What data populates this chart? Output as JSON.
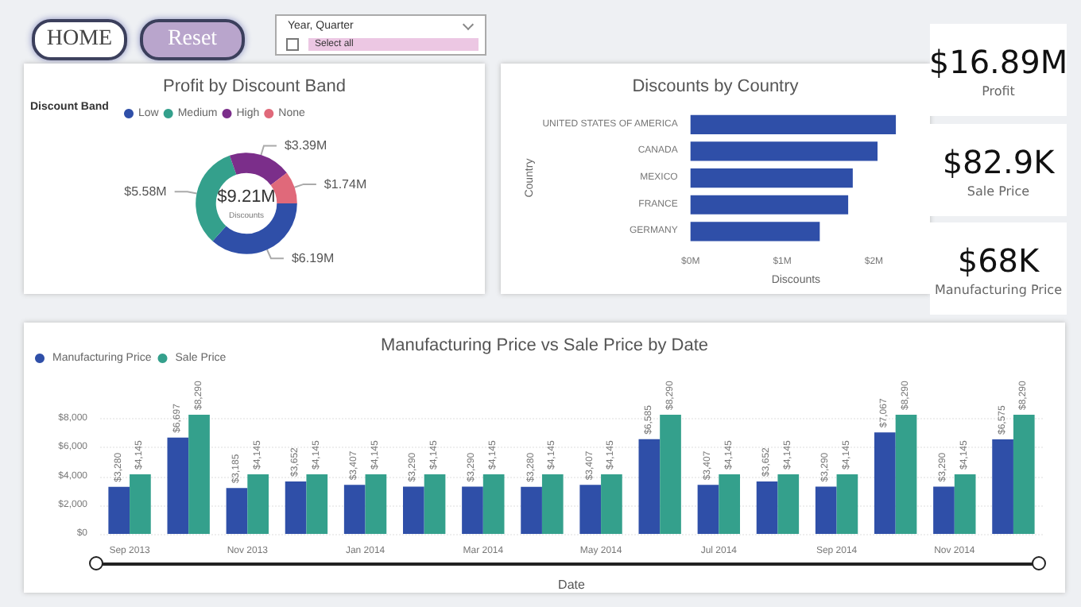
{
  "chart_data": [
    {
      "type": "other",
      "annotations": [
        "HOME",
        "Reset",
        "Year, Quarter",
        "Select all"
      ]
    },
    {
      "type": "donut",
      "title": "Profit by Discount Band",
      "legend_title": "Discount Band",
      "legend": "top left",
      "categories": [
        "Low",
        "Medium",
        "High",
        "None"
      ],
      "values": [
        6.19,
        5.58,
        3.39,
        1.74
      ],
      "colors": [
        "#2f4fa8",
        "#34a08c",
        "#7b2e8a",
        "#e0697a"
      ],
      "value_labels": [
        "$6.19M",
        "$5.58M",
        "$3.39M",
        "$1.74M"
      ],
      "annotations": [
        "$9.21M",
        "Discounts"
      ]
    },
    {
      "type": "bar",
      "orientation": "horizontal",
      "title": "Discounts by Country",
      "xlabel": "Discounts",
      "ylabel": "Country",
      "categories": [
        "UNITED STATES OF AMERICA",
        "CANADA",
        "MEXICO",
        "FRANCE",
        "GERMANY"
      ],
      "values": [
        2.24,
        2.04,
        1.77,
        1.72,
        1.41
      ],
      "color": "#2f4fa8",
      "xlim": [
        0,
        2.3
      ],
      "xticks": [
        {
          "value": 0,
          "label": "$0M"
        },
        {
          "value": 1,
          "label": "$1M"
        },
        {
          "value": 2,
          "label": "$2M"
        }
      ],
      "grid": false
    },
    {
      "type": "other",
      "annotations": [
        "$16.89M",
        "Profit",
        "$82.9K",
        "Sale Price",
        "$68K",
        "Manufacturing Price"
      ]
    },
    {
      "type": "bar",
      "title": "Manufacturing Price vs Sale Price by Date",
      "xlabel": "Date",
      "legend": "top left",
      "grid": "y",
      "categories": [
        "Sep 2013",
        null,
        "Nov 2013",
        null,
        "Jan 2014",
        null,
        "Mar 2014",
        null,
        "May 2014",
        null,
        "Jul 2014",
        null,
        "Sep 2014",
        null,
        "Nov 2014",
        null
      ],
      "ylim": [
        0,
        8290
      ],
      "yticks": [
        {
          "value": 0,
          "label": "$0"
        },
        {
          "value": 2000,
          "label": "$2,000"
        },
        {
          "value": 4000,
          "label": "$4,000"
        },
        {
          "value": 6000,
          "label": "$6,000"
        },
        {
          "value": 8000,
          "label": "$8,000"
        }
      ],
      "series": [
        {
          "name": "Manufacturing Price",
          "color": "#2f4fa8",
          "values": [
            3280,
            6697,
            3185,
            3652,
            3407,
            3290,
            3290,
            3280,
            3407,
            6585,
            3407,
            3652,
            3290,
            7067,
            3290,
            6575
          ],
          "value_labels": [
            "$3,280",
            "$6,697",
            "$3,185",
            "$3,652",
            "$3,407",
            "$3,290",
            "$3,290",
            "$3,280",
            "$3,407",
            "$6,585",
            "$3,407",
            "$3,652",
            "$3,290",
            "$7,067",
            "$3,290",
            "$6,575"
          ]
        },
        {
          "name": "Sale Price",
          "color": "#34a08c",
          "values": [
            4145,
            8290,
            4145,
            4145,
            4145,
            4145,
            4145,
            4145,
            4145,
            8290,
            4145,
            4145,
            4145,
            8290,
            4145,
            8290
          ],
          "value_labels": [
            "$4,145",
            "$8,290",
            "$4,145",
            "$4,145",
            "$4,145",
            "$4,145",
            "$4,145",
            "$4,145",
            "$4,145",
            "$8,290",
            "$4,145",
            "$4,145",
            "$4,145",
            "$8,290",
            "$4,145",
            "$8,290"
          ]
        }
      ]
    }
  ]
}
